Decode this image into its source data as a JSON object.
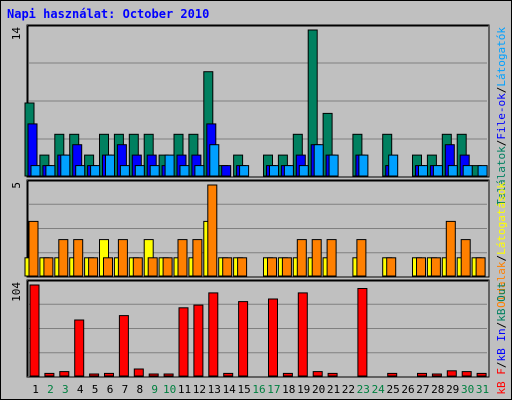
{
  "title": "Napi használat: October 2010",
  "colors": {
    "background": "#c0c0c0",
    "grid": "#808080",
    "title": "#0000ff",
    "hits": "#008060",
    "files": "#0000ff",
    "sites": "#00a0ff",
    "pages": "#ff8000",
    "visits": "#ffff00",
    "kbin": "#0000ff",
    "kbout": "#008060",
    "kbf": "#ff0000",
    "weekend": "#008040",
    "weekday": "#000000"
  },
  "chart_data": [
    {
      "type": "bar",
      "ylabel_top": "14",
      "legend": [
        {
          "text": "Találatok",
          "color": "#008060"
        },
        {
          "text": "/",
          "color": "#000000"
        },
        {
          "text": "File-ok",
          "color": "#0000ff"
        },
        {
          "text": "/",
          "color": "#000000"
        },
        {
          "text": "Látogatók",
          "color": "#00a0ff"
        }
      ],
      "ylim": [
        0,
        14
      ],
      "x": [
        1,
        2,
        3,
        4,
        5,
        6,
        7,
        8,
        9,
        10,
        11,
        12,
        13,
        14,
        15,
        16,
        17,
        18,
        19,
        20,
        21,
        22,
        23,
        24,
        25,
        26,
        27,
        28,
        29,
        30,
        31
      ],
      "series": [
        {
          "name": "Találatok",
          "values": [
            7,
            2,
            4,
            4,
            2,
            4,
            4,
            4,
            4,
            2,
            4,
            4,
            10,
            1,
            2,
            0,
            2,
            2,
            4,
            14,
            6,
            0,
            4,
            0,
            4,
            0,
            2,
            2,
            4,
            4,
            1
          ]
        },
        {
          "name": "File-ok",
          "values": [
            5,
            1,
            2,
            3,
            1,
            2,
            3,
            2,
            2,
            1,
            2,
            2,
            5,
            1,
            1,
            0,
            1,
            1,
            2,
            3,
            2,
            0,
            2,
            0,
            1,
            0,
            1,
            1,
            3,
            2,
            0
          ]
        },
        {
          "name": "Látogatók",
          "values": [
            1,
            1,
            2,
            1,
            1,
            2,
            1,
            1,
            1,
            2,
            1,
            1,
            3,
            0,
            1,
            0,
            1,
            1,
            1,
            3,
            2,
            0,
            2,
            0,
            2,
            0,
            1,
            1,
            1,
            1,
            1
          ]
        }
      ]
    },
    {
      "type": "bar",
      "ylabel_top": "5",
      "legend": [
        {
          "text": "Oldalak",
          "color": "#ff8000"
        },
        {
          "text": "/",
          "color": "#000000"
        },
        {
          "text": "Látogatások",
          "color": "#ffff00"
        }
      ],
      "ylim": [
        0,
        5
      ],
      "series": [
        {
          "name": "Látogatások",
          "values": [
            1,
            1,
            1,
            1,
            1,
            2,
            1,
            1,
            2,
            1,
            1,
            1,
            3,
            1,
            1,
            0,
            1,
            1,
            1,
            1,
            1,
            0,
            1,
            0,
            1,
            0,
            1,
            1,
            1,
            1,
            1
          ]
        },
        {
          "name": "Oldalak",
          "values": [
            3,
            1,
            2,
            2,
            1,
            1,
            2,
            1,
            1,
            1,
            2,
            2,
            5,
            1,
            1,
            0,
            1,
            1,
            2,
            2,
            2,
            0,
            2,
            0,
            1,
            0,
            1,
            1,
            3,
            2,
            1
          ]
        }
      ]
    },
    {
      "type": "bar",
      "ylabel_top": "104",
      "legend": [
        {
          "text": "kB F",
          "color": "#ff0000"
        },
        {
          "text": "/",
          "color": "#000000"
        },
        {
          "text": "kB In",
          "color": "#0000ff"
        },
        {
          "text": "/",
          "color": "#000000"
        },
        {
          "text": "kB Out",
          "color": "#008060"
        }
      ],
      "ylim": [
        0,
        104
      ],
      "series": [
        {
          "name": "kB F",
          "values": [
            104,
            3,
            5,
            64,
            1,
            3,
            69,
            8,
            2,
            2,
            78,
            81,
            95,
            3,
            85,
            0,
            88,
            3,
            95,
            5,
            3,
            0,
            100,
            0,
            3,
            0,
            3,
            2,
            6,
            5,
            3
          ]
        }
      ]
    }
  ],
  "x_labels": [
    "1",
    "2",
    "3",
    "4",
    "5",
    "6",
    "7",
    "8",
    "9",
    "10",
    "11",
    "12",
    "13",
    "14",
    "15",
    "16",
    "17",
    "18",
    "19",
    "20",
    "21",
    "22",
    "23",
    "24",
    "25",
    "26",
    "27",
    "28",
    "29",
    "30",
    "31"
  ],
  "weekend_days": [
    2,
    3,
    9,
    10,
    16,
    17,
    23,
    24,
    30,
    31
  ]
}
